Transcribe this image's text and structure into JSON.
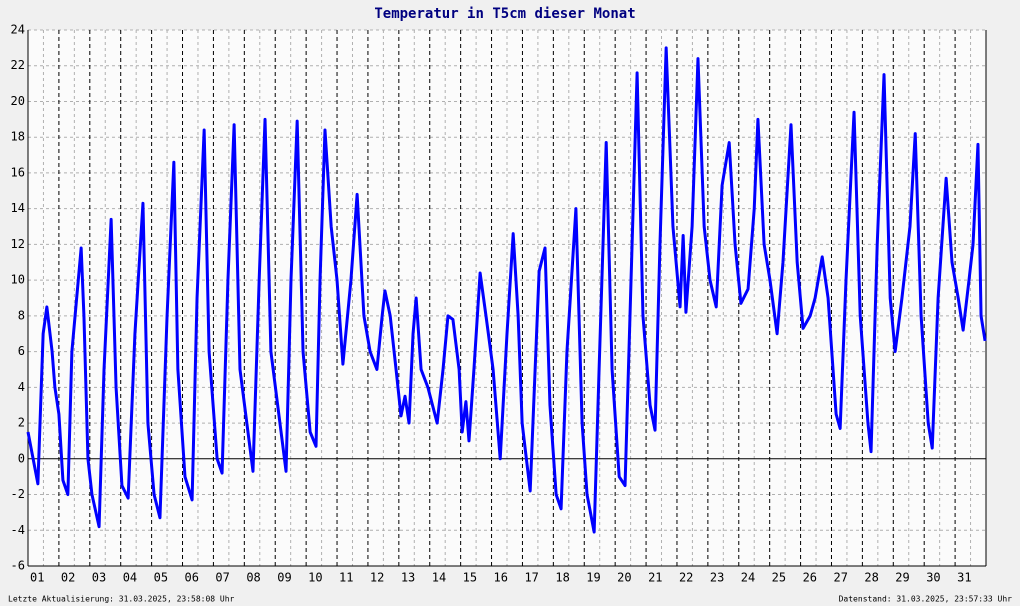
{
  "chart_data": {
    "type": "line",
    "title": "Temperatur in T5cm dieser Monat",
    "footer_left": "Letzte Aktualisierung: 31.03.2025, 23:58:08 Uhr",
    "footer_right": "Datenstand: 31.03.2025, 23:57:33 Uhr",
    "xlim": [
      1,
      32
    ],
    "ylim": [
      -6,
      24
    ],
    "yticks": [
      -6,
      -4,
      -2,
      0,
      2,
      4,
      6,
      8,
      10,
      12,
      14,
      16,
      18,
      20,
      22,
      24
    ],
    "xticks": [
      {
        "value": 1,
        "label": "01"
      },
      {
        "value": 2,
        "label": "02"
      },
      {
        "value": 3,
        "label": "03"
      },
      {
        "value": 4,
        "label": "04"
      },
      {
        "value": 5,
        "label": "05"
      },
      {
        "value": 6,
        "label": "06"
      },
      {
        "value": 7,
        "label": "07"
      },
      {
        "value": 8,
        "label": "08"
      },
      {
        "value": 9,
        "label": "09"
      },
      {
        "value": 10,
        "label": "10"
      },
      {
        "value": 11,
        "label": "11"
      },
      {
        "value": 12,
        "label": "12"
      },
      {
        "value": 13,
        "label": "13"
      },
      {
        "value": 14,
        "label": "14"
      },
      {
        "value": 15,
        "label": "15"
      },
      {
        "value": 16,
        "label": "16"
      },
      {
        "value": 17,
        "label": "17"
      },
      {
        "value": 18,
        "label": "18"
      },
      {
        "value": 19,
        "label": "19"
      },
      {
        "value": 20,
        "label": "20"
      },
      {
        "value": 21,
        "label": "21"
      },
      {
        "value": 22,
        "label": "22"
      },
      {
        "value": 23,
        "label": "23"
      },
      {
        "value": 24,
        "label": "24"
      },
      {
        "value": 25,
        "label": "25"
      },
      {
        "value": 26,
        "label": "26"
      },
      {
        "value": 27,
        "label": "27"
      },
      {
        "value": 28,
        "label": "28"
      },
      {
        "value": 29,
        "label": "29"
      },
      {
        "value": 30,
        "label": "30"
      },
      {
        "value": 31,
        "label": "31"
      }
    ],
    "grid": true,
    "color": "#0000ff",
    "x": [
      1.0,
      1.32,
      1.49,
      1.61,
      1.78,
      1.87,
      2.0,
      2.13,
      2.29,
      2.42,
      2.72,
      2.81,
      2.94,
      3.07,
      3.3,
      3.46,
      3.69,
      3.85,
      4.04,
      4.24,
      4.46,
      4.72,
      4.88,
      5.08,
      5.27,
      5.5,
      5.72,
      5.85,
      6.08,
      6.31,
      6.47,
      6.7,
      6.86,
      7.12,
      7.28,
      7.47,
      7.67,
      7.86,
      8.28,
      8.48,
      8.67,
      8.86,
      9.35,
      9.51,
      9.71,
      9.9,
      10.13,
      10.32,
      10.45,
      10.61,
      10.81,
      11.0,
      11.19,
      11.45,
      11.65,
      11.87,
      12.07,
      12.29,
      12.46,
      12.55,
      12.72,
      12.91,
      13.07,
      13.2,
      13.33,
      13.46,
      13.56,
      13.72,
      13.94,
      14.24,
      14.43,
      14.59,
      14.75,
      14.95,
      15.05,
      15.17,
      15.27,
      15.43,
      15.63,
      15.82,
      16.05,
      16.28,
      16.5,
      16.7,
      16.86,
      16.99,
      17.25,
      17.41,
      17.54,
      17.73,
      17.89,
      18.09,
      18.25,
      18.44,
      18.73,
      18.93,
      19.09,
      19.32,
      19.48,
      19.71,
      19.9,
      20.13,
      20.32,
      20.48,
      20.71,
      20.9,
      21.13,
      21.29,
      21.45,
      21.65,
      21.87,
      22.1,
      22.2,
      22.29,
      22.49,
      22.68,
      22.88,
      23.07,
      23.27,
      23.46,
      23.69,
      23.88,
      24.07,
      24.3,
      24.5,
      24.62,
      24.82,
      25.01,
      25.24,
      25.43,
      25.69,
      25.89,
      26.08,
      26.31,
      26.47,
      26.7,
      26.89,
      27.15,
      27.28,
      27.47,
      27.73,
      27.93,
      28.18,
      28.28,
      28.48,
      28.7,
      28.9,
      29.06,
      29.28,
      29.54,
      29.71,
      29.9,
      30.13,
      30.26,
      30.45,
      30.71,
      30.9,
      31.1,
      31.26,
      31.45,
      31.58,
      31.74,
      31.84,
      31.97
    ],
    "values": [
      1.5,
      -1.4,
      7,
      8.5,
      6,
      4,
      2.5,
      -1.2,
      -2,
      6,
      11.8,
      8,
      0,
      -2,
      -3.8,
      5,
      13.4,
      4,
      -1.5,
      -2.2,
      7,
      14.3,
      2,
      -2,
      -3.3,
      8,
      16.6,
      5,
      -1,
      -2.3,
      9,
      18.4,
      6,
      0,
      -0.8,
      10,
      18.7,
      5,
      -0.7,
      10,
      19,
      6,
      -0.7,
      10,
      18.9,
      6,
      1.5,
      0.7,
      10,
      18.4,
      13,
      10,
      5.3,
      10,
      14.8,
      8,
      6,
      5,
      8,
      9.4,
      8,
      5,
      2.4,
      3.5,
      2,
      7,
      9,
      5,
      4,
      2,
      5,
      8,
      7.8,
      5,
      1.5,
      3.2,
      1,
      5,
      10.4,
      8,
      5,
      0,
      7,
      12.6,
      8,
      2,
      -1.8,
      5,
      10.5,
      11.8,
      3,
      -2,
      -2.8,
      6,
      14,
      2,
      -2,
      -4.1,
      5,
      17.7,
      5,
      -1,
      -1.5,
      8,
      21.6,
      8,
      3,
      1.6,
      12,
      23,
      13,
      8.5,
      12.5,
      8.2,
      13,
      22.4,
      13,
      10,
      8.5,
      15.3,
      17.7,
      12,
      8.7,
      9.5,
      14,
      19,
      12,
      10,
      7,
      11,
      18.7,
      11,
      7.3,
      8,
      9,
      11.3,
      9,
      2.5,
      1.7,
      10,
      19.4,
      8,
      2,
      0.4,
      12,
      21.5,
      9,
      6,
      9,
      13,
      18.2,
      8,
      2,
      0.6,
      9,
      15.7,
      11,
      9,
      7.2,
      10,
      12,
      17.6,
      8,
      6.6
    ]
  }
}
